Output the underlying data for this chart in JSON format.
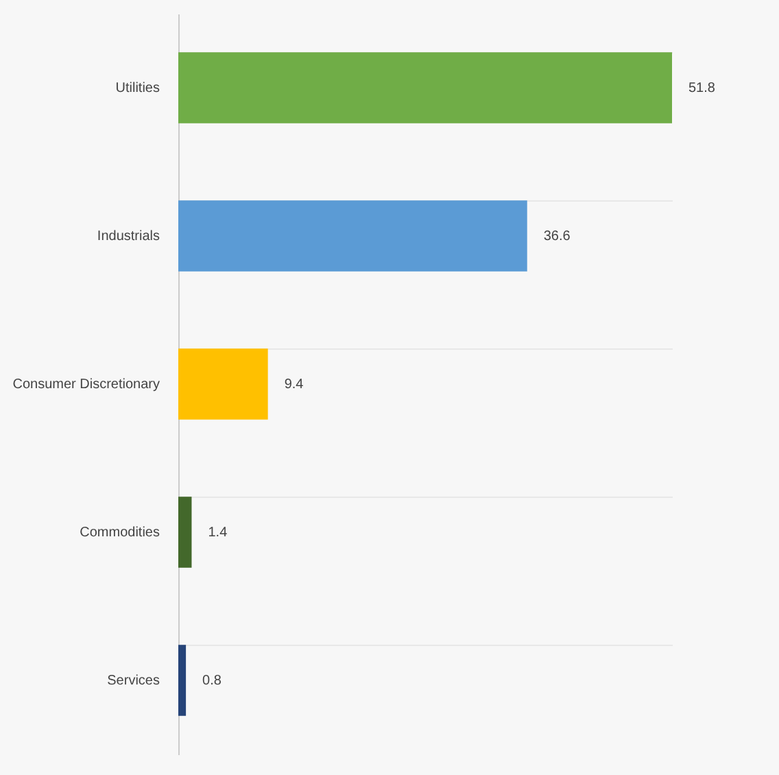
{
  "chart_data": {
    "type": "bar",
    "orientation": "horizontal",
    "categories": [
      "Utilities",
      "Industrials",
      "Consumer Discretionary",
      "Commodities",
      "Services"
    ],
    "values": [
      51.8,
      36.6,
      9.4,
      1.4,
      0.8
    ],
    "colors": [
      "#70ad47",
      "#5b9bd5",
      "#ffc000",
      "#43682b",
      "#264478"
    ],
    "data_labels": true,
    "grid": "y"
  }
}
